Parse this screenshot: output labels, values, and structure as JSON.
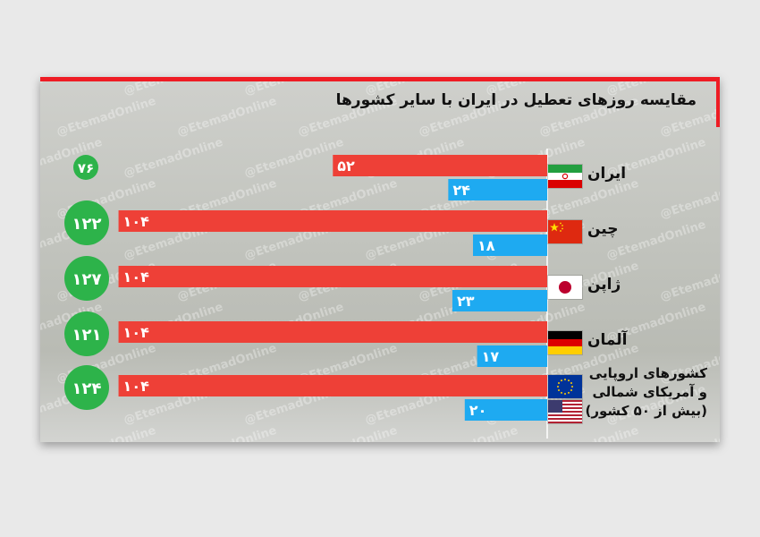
{
  "title": "مقایسه روزهای تعطیل در ایران با سایر کشورها",
  "watermark": "@EtemadOnline",
  "colors": {
    "red": "#ee4037",
    "blue": "#1eaaf1",
    "green": "#2db34a",
    "accent": "#ee1c24"
  },
  "chart_data": {
    "type": "bar",
    "orientation": "horizontal",
    "categories": [
      "ایران",
      "چین",
      "ژاپن",
      "آلمان",
      "کشورهای اروپایی و آمریکای شمالی (بیش از ۵۰ کشور)"
    ],
    "series": [
      {
        "values": [
          52,
          104,
          104,
          104,
          104
        ],
        "labels": [
          "۵۲",
          "۱۰۴",
          "۱۰۴",
          "۱۰۴",
          "۱۰۴"
        ],
        "color": "#ee4037"
      },
      {
        "values": [
          24,
          18,
          23,
          17,
          20
        ],
        "labels": [
          "۲۴",
          "۱۸",
          "۲۳",
          "۱۷",
          "۲۰"
        ],
        "color": "#1eaaf1"
      }
    ],
    "totals": [
      76,
      122,
      127,
      121,
      124
    ],
    "total_labels": [
      "۷۶",
      "۱۲۲",
      "۱۲۷",
      "۱۲۱",
      "۱۲۴"
    ]
  },
  "rows": [
    {
      "label": "ایران",
      "flag": "iran-flag"
    },
    {
      "label": "چین",
      "flag": "china-flag"
    },
    {
      "label": "ژاپن",
      "flag": "japan-flag"
    },
    {
      "label": "آلمان",
      "flag": "germany-flag"
    },
    {
      "label_lines": [
        "کشورهای اروپایی",
        "و آمریکای شمالی",
        "(بیش از ۵۰ کشور)"
      ],
      "flag": "eu-us-flags"
    }
  ]
}
